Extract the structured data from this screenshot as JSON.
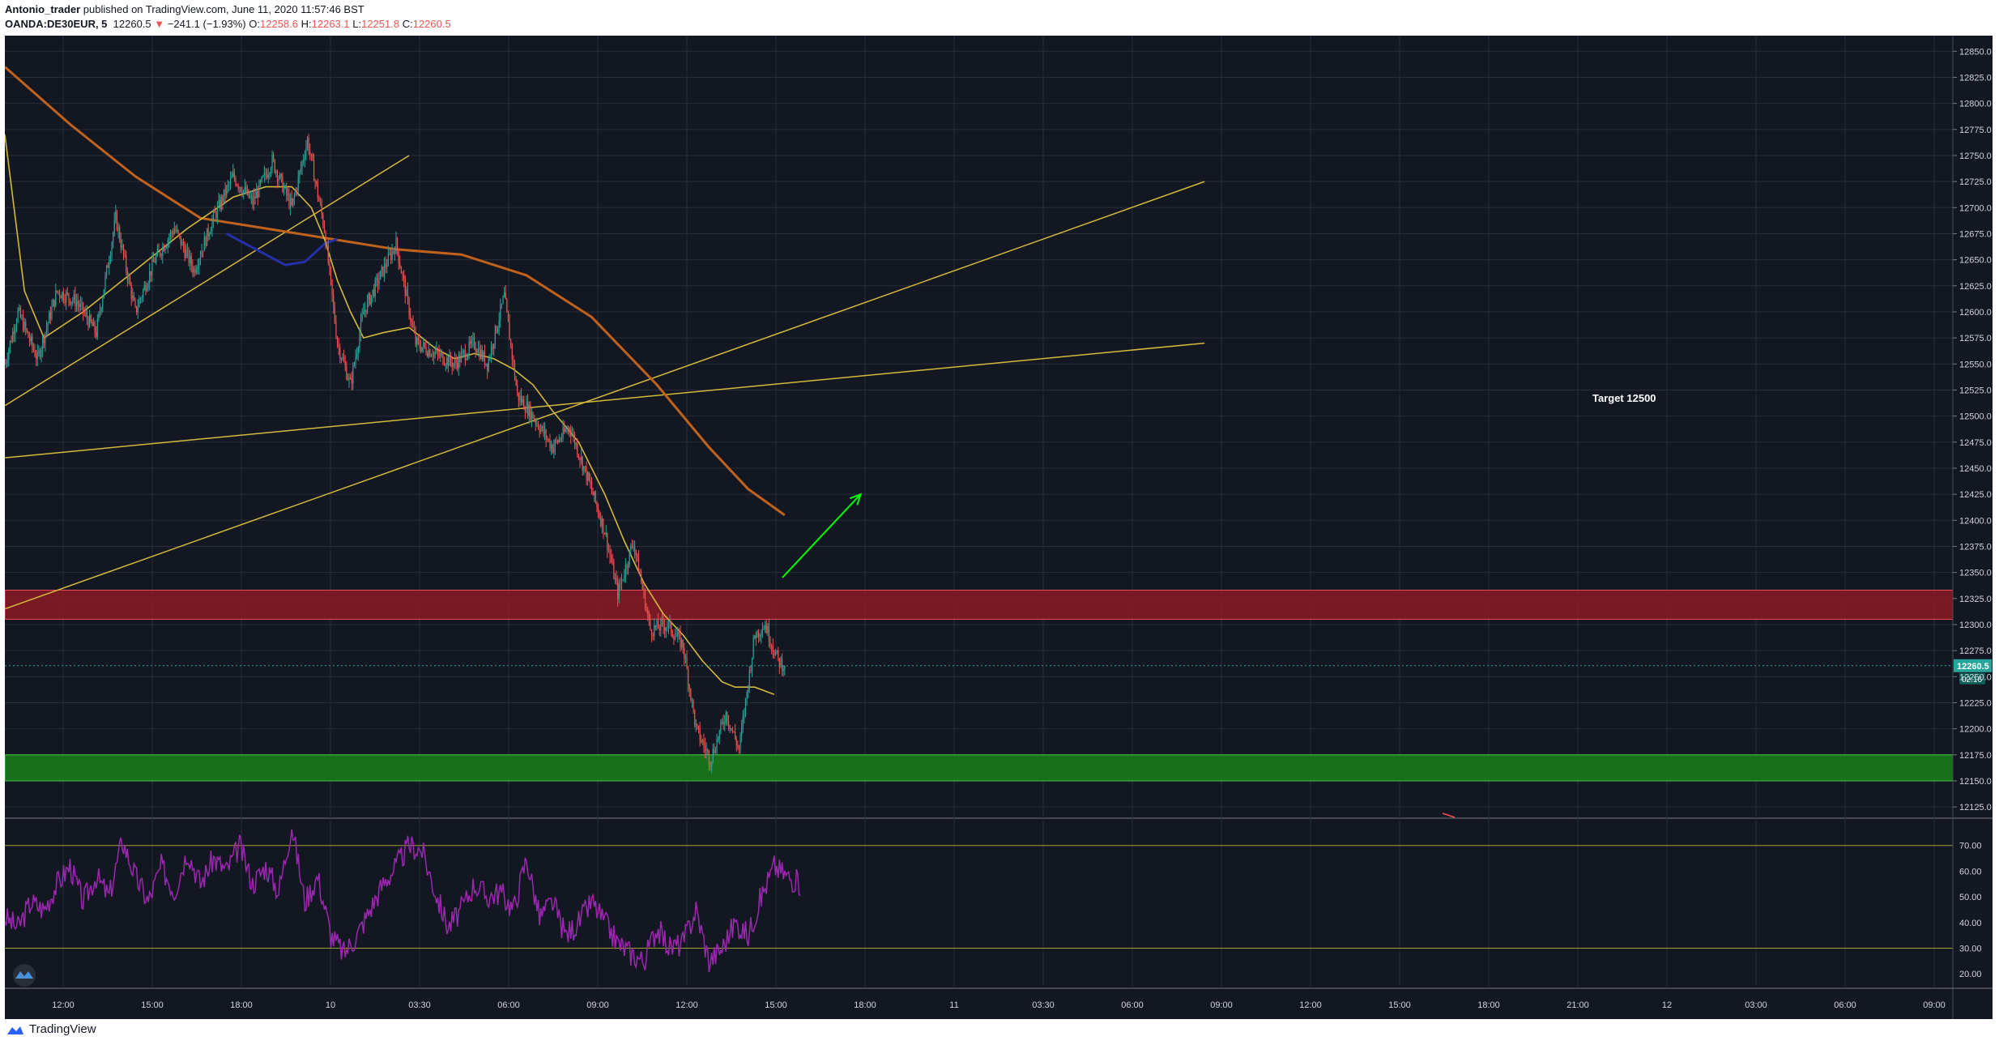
{
  "header": {
    "author": "Antonio_trader",
    "published_text": "published on TradingView.com, June 11, 2020 11:57:46 BST",
    "symbol": "OANDA:DE30EUR, 5",
    "last": "12260.5",
    "change": "−241.1 (−1.93%)",
    "o_label": "O:",
    "o_value": "12258.6",
    "h_label": "H:",
    "h_value": "12263.1",
    "l_label": "L:",
    "l_value": "12251.8",
    "c_label": "C:",
    "c_value": "12260.5"
  },
  "colors": {
    "background": "#131722",
    "grid": "#2a2e39",
    "up_candle": "#26a69a",
    "down_candle": "#ef5350",
    "ma_short": "#d4b93a",
    "ma_long": "#c0621b",
    "ma_blue": "#2430a8",
    "trendline": "#d4b93a",
    "resistance_zone": "#8b1a24",
    "support_zone": "#1a7a1a",
    "rsi_line": "#9c27b0",
    "rsi_band": "#a3a332",
    "arrow": "#00ff00"
  },
  "annotation": {
    "target_label": "Target 12500"
  },
  "current_price": {
    "label": "12260.5",
    "countdown": "02:16"
  },
  "chart_data": {
    "type": "candlestick",
    "symbol": "OANDA:DE30EUR",
    "timeframe": "5",
    "ylim": [
      12115,
      12865
    ],
    "y_ticks": [
      "12850.0",
      "12825.0",
      "12800.0",
      "12775.0",
      "12750.0",
      "12725.0",
      "12700.0",
      "12675.0",
      "12650.0",
      "12625.0",
      "12600.0",
      "12575.0",
      "12550.0",
      "12525.0",
      "12500.0",
      "12475.0",
      "12450.0",
      "12425.0",
      "12400.0",
      "12375.0",
      "12350.0",
      "12325.0",
      "12300.0",
      "12275.0",
      "12250.0",
      "12225.0",
      "12200.0",
      "12175.0",
      "12150.0",
      "12125.0"
    ],
    "x_ticks": [
      "12:00",
      "15:00",
      "18:00",
      "10",
      "03:30",
      "06:00",
      "09:00",
      "12:00",
      "15:00",
      "18:00",
      "11",
      "03:30",
      "06:00",
      "09:00",
      "12:00",
      "15:00",
      "18:00",
      "21:00",
      "12",
      "03:00",
      "06:00",
      "09:00",
      "12"
    ],
    "price_path": [
      [
        0,
        12550
      ],
      [
        10,
        12600
      ],
      [
        25,
        12555
      ],
      [
        40,
        12620
      ],
      [
        55,
        12610
      ],
      [
        70,
        12580
      ],
      [
        85,
        12690
      ],
      [
        100,
        12600
      ],
      [
        115,
        12650
      ],
      [
        130,
        12680
      ],
      [
        145,
        12640
      ],
      [
        160,
        12690
      ],
      [
        175,
        12730
      ],
      [
        190,
        12705
      ],
      [
        205,
        12745
      ],
      [
        220,
        12700
      ],
      [
        232,
        12765
      ],
      [
        245,
        12680
      ],
      [
        255,
        12570
      ],
      [
        265,
        12530
      ],
      [
        275,
        12600
      ],
      [
        290,
        12640
      ],
      [
        300,
        12665
      ],
      [
        315,
        12570
      ],
      [
        330,
        12560
      ],
      [
        345,
        12550
      ],
      [
        360,
        12570
      ],
      [
        370,
        12550
      ],
      [
        383,
        12615
      ],
      [
        393,
        12520
      ],
      [
        405,
        12500
      ],
      [
        420,
        12470
      ],
      [
        433,
        12490
      ],
      [
        447,
        12440
      ],
      [
        460,
        12390
      ],
      [
        470,
        12330
      ],
      [
        482,
        12380
      ],
      [
        495,
        12295
      ],
      [
        508,
        12300
      ],
      [
        520,
        12280
      ],
      [
        530,
        12200
      ],
      [
        541,
        12170
      ],
      [
        553,
        12215
      ],
      [
        563,
        12180
      ],
      [
        575,
        12290
      ],
      [
        583,
        12300
      ],
      [
        593,
        12265
      ],
      [
        598,
        12260.5
      ]
    ],
    "resistance_zone": [
      12305,
      12333
    ],
    "support_zone": [
      12150,
      12175
    ],
    "ma_short": [
      [
        0,
        12770
      ],
      [
        15,
        12620
      ],
      [
        30,
        12575
      ],
      [
        60,
        12600
      ],
      [
        100,
        12640
      ],
      [
        140,
        12680
      ],
      [
        175,
        12710
      ],
      [
        200,
        12720
      ],
      [
        220,
        12720
      ],
      [
        235,
        12700
      ],
      [
        245,
        12670
      ],
      [
        255,
        12630
      ],
      [
        265,
        12600
      ],
      [
        275,
        12575
      ],
      [
        290,
        12580
      ],
      [
        310,
        12585
      ],
      [
        330,
        12565
      ],
      [
        345,
        12555
      ],
      [
        360,
        12560
      ],
      [
        375,
        12555
      ],
      [
        390,
        12545
      ],
      [
        405,
        12530
      ],
      [
        420,
        12505
      ],
      [
        440,
        12475
      ],
      [
        460,
        12425
      ],
      [
        475,
        12380
      ],
      [
        490,
        12340
      ],
      [
        505,
        12310
      ],
      [
        520,
        12290
      ],
      [
        535,
        12265
      ],
      [
        550,
        12245
      ],
      [
        560,
        12240
      ],
      [
        575,
        12240
      ],
      [
        590,
        12233
      ]
    ],
    "ma_long": [
      [
        0,
        12835
      ],
      [
        50,
        12780
      ],
      [
        100,
        12730
      ],
      [
        150,
        12690
      ],
      [
        200,
        12680
      ],
      [
        260,
        12668
      ],
      [
        300,
        12660
      ],
      [
        350,
        12655
      ],
      [
        400,
        12635
      ],
      [
        450,
        12595
      ],
      [
        500,
        12530
      ],
      [
        540,
        12470
      ],
      [
        570,
        12430
      ],
      [
        598,
        12405
      ]
    ],
    "ma_blue": [
      [
        170,
        12675
      ],
      [
        200,
        12655
      ],
      [
        215,
        12645
      ],
      [
        230,
        12648
      ],
      [
        245,
        12665
      ],
      [
        255,
        12670
      ]
    ],
    "trendlines": [
      {
        "points": [
          [
            0,
            12510
          ],
          [
            310,
            12750
          ]
        ]
      },
      {
        "points": [
          [
            0,
            12460
          ],
          [
            920,
            12570
          ]
        ]
      },
      {
        "points": [
          [
            0,
            12315
          ],
          [
            920,
            12725
          ]
        ]
      }
    ],
    "arrow": {
      "from": [
        590,
        12345
      ],
      "to": [
        650,
        12425
      ]
    },
    "rsi": {
      "ylim": [
        15,
        80
      ],
      "ticks": [
        "70.00",
        "60.00",
        "50.00",
        "40.00",
        "30.00",
        "20.00"
      ],
      "band_levels": [
        70,
        30
      ],
      "path": [
        [
          0,
          42
        ],
        [
          10,
          38
        ],
        [
          20,
          48
        ],
        [
          30,
          45
        ],
        [
          40,
          55
        ],
        [
          50,
          62
        ],
        [
          60,
          48
        ],
        [
          70,
          58
        ],
        [
          80,
          50
        ],
        [
          90,
          72
        ],
        [
          100,
          58
        ],
        [
          110,
          48
        ],
        [
          120,
          62
        ],
        [
          130,
          52
        ],
        [
          140,
          68
        ],
        [
          150,
          55
        ],
        [
          160,
          65
        ],
        [
          170,
          60
        ],
        [
          180,
          70
        ],
        [
          190,
          55
        ],
        [
          200,
          62
        ],
        [
          210,
          52
        ],
        [
          220,
          78
        ],
        [
          230,
          48
        ],
        [
          240,
          58
        ],
        [
          250,
          35
        ],
        [
          260,
          28
        ],
        [
          270,
          35
        ],
        [
          280,
          45
        ],
        [
          290,
          55
        ],
        [
          300,
          62
        ],
        [
          310,
          70
        ],
        [
          320,
          68
        ],
        [
          330,
          52
        ],
        [
          340,
          38
        ],
        [
          350,
          45
        ],
        [
          360,
          55
        ],
        [
          370,
          50
        ],
        [
          380,
          52
        ],
        [
          390,
          45
        ],
        [
          400,
          65
        ],
        [
          410,
          42
        ],
        [
          420,
          48
        ],
        [
          430,
          35
        ],
        [
          440,
          40
        ],
        [
          450,
          48
        ],
        [
          460,
          40
        ],
        [
          470,
          32
        ],
        [
          480,
          28
        ],
        [
          490,
          25
        ],
        [
          500,
          38
        ],
        [
          510,
          30
        ],
        [
          520,
          32
        ],
        [
          530,
          45
        ],
        [
          540,
          25
        ],
        [
          550,
          30
        ],
        [
          560,
          40
        ],
        [
          570,
          35
        ],
        [
          580,
          50
        ],
        [
          590,
          62
        ],
        [
          600,
          58
        ],
        [
          610,
          55
        ]
      ]
    }
  }
}
